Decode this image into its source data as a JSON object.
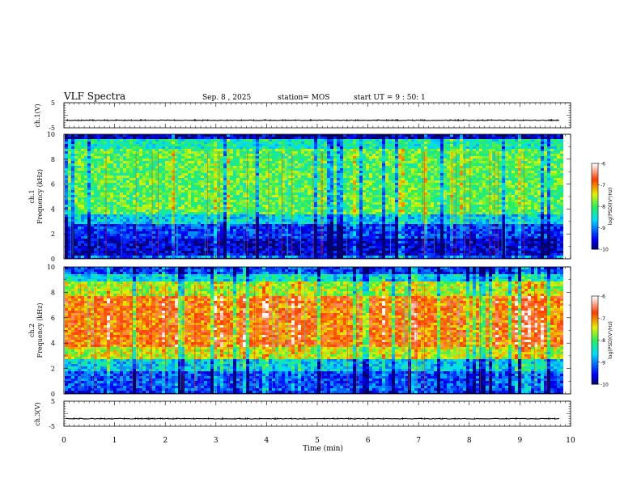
{
  "header": {
    "title": "VLF Spectra",
    "date": "Sep. 8 , 2025",
    "station": "station= MOS",
    "start": "start UT =  9 : 50: 1"
  },
  "chart_data": [
    {
      "type": "line",
      "panel": "ch1-waveform",
      "ylabel": "ch.1(V)",
      "ylim": [
        -5,
        5
      ],
      "yticks": [
        "5",
        "-5"
      ],
      "series": [
        {
          "values": [
            -2
          ]
        }
      ]
    },
    {
      "type": "heatmap",
      "panel": "ch1-spectrogram",
      "ylabel_line1": "ch.1",
      "ylabel_line2": "Frequency (kHz)",
      "ylim": [
        0,
        10
      ],
      "yticks": [
        "0",
        "2",
        "4",
        "6",
        "8",
        "10"
      ],
      "colorbar": {
        "label": "log(PSD)(V²/Hz)",
        "ticks": [
          "-6",
          "-7",
          "-8",
          "-9",
          "-10"
        ],
        "range": [
          -10,
          -6
        ]
      },
      "bands": [
        {
          "from": 0,
          "to": 0.3,
          "level": -9.0
        },
        {
          "from": 0.3,
          "to": 1.6,
          "level": -9.7
        },
        {
          "from": 1.6,
          "to": 2.8,
          "level": -9.3
        },
        {
          "from": 2.8,
          "to": 3.6,
          "level": -8.6
        },
        {
          "from": 3.6,
          "to": 8.8,
          "level": -7.9
        },
        {
          "from": 8.8,
          "to": 9.6,
          "level": -8.3
        },
        {
          "from": 9.6,
          "to": 10,
          "level": -9.7
        }
      ]
    },
    {
      "type": "heatmap",
      "panel": "ch2-spectrogram",
      "ylabel_line1": "ch.2",
      "ylabel_line2": "Frequency (kHz)",
      "ylim": [
        0,
        10
      ],
      "yticks": [
        "0",
        "2",
        "4",
        "6",
        "8",
        "10"
      ],
      "colorbar": {
        "label": "log(PSD)(V²/Hz)",
        "ticks": [
          "-6",
          "-7",
          "-8",
          "-9",
          "-10"
        ],
        "range": [
          -10,
          -6
        ]
      },
      "bands": [
        {
          "from": 0,
          "to": 0.3,
          "level": -9.4
        },
        {
          "from": 0.3,
          "to": 1.8,
          "level": -9.2
        },
        {
          "from": 1.8,
          "to": 2.8,
          "level": -8.6
        },
        {
          "from": 2.8,
          "to": 3.6,
          "level": -7.5
        },
        {
          "from": 3.6,
          "to": 7.8,
          "level": -6.9
        },
        {
          "from": 7.8,
          "to": 8.8,
          "level": -7.6
        },
        {
          "from": 8.8,
          "to": 9.4,
          "level": -8.5
        },
        {
          "from": 9.4,
          "to": 10,
          "level": -9.3
        }
      ]
    },
    {
      "type": "line",
      "panel": "ch3-waveform",
      "ylabel": "ch.3(V)",
      "ylim": [
        -5,
        5
      ],
      "yticks": [
        "5",
        "-5"
      ],
      "series": [
        {
          "values": [
            -2
          ]
        }
      ]
    }
  ],
  "xaxis": {
    "label": "Time (min)",
    "xlim": [
      0,
      10
    ],
    "ticks": [
      "0",
      "1",
      "2",
      "3",
      "4",
      "5",
      "6",
      "7",
      "8",
      "9",
      "10"
    ],
    "data_end": 9.8
  }
}
